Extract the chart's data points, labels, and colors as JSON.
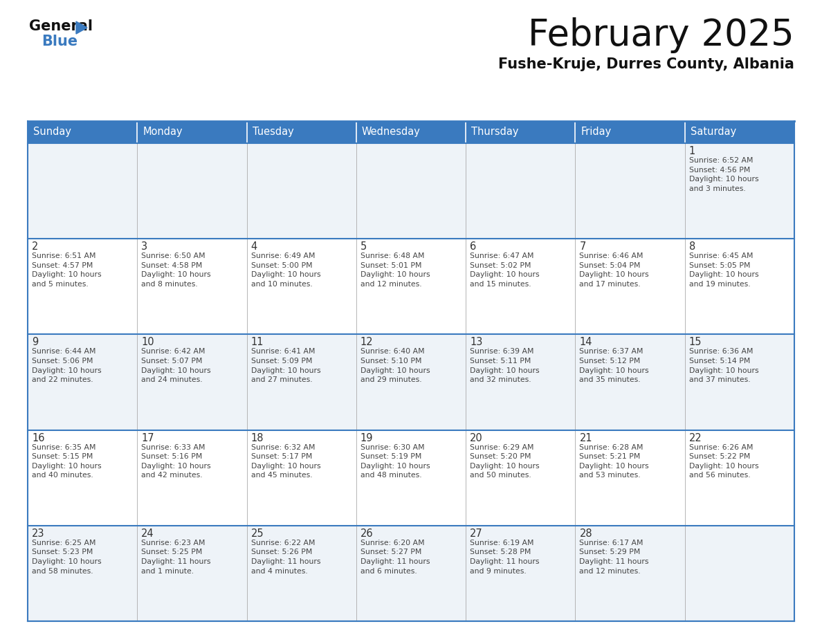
{
  "title": "February 2025",
  "subtitle": "Fushe-Kruje, Durres County, Albania",
  "header_color": "#3a7abf",
  "header_text_color": "#ffffff",
  "border_color": "#3a7abf",
  "cell_line_color": "#aaaaaa",
  "day_number_color": "#333333",
  "cell_text_color": "#444444",
  "row_bg_even": "#eef3f8",
  "row_bg_odd": "#ffffff",
  "days_of_week": [
    "Sunday",
    "Monday",
    "Tuesday",
    "Wednesday",
    "Thursday",
    "Friday",
    "Saturday"
  ],
  "calendar_data": [
    [
      {
        "day": null,
        "text": ""
      },
      {
        "day": null,
        "text": ""
      },
      {
        "day": null,
        "text": ""
      },
      {
        "day": null,
        "text": ""
      },
      {
        "day": null,
        "text": ""
      },
      {
        "day": null,
        "text": ""
      },
      {
        "day": 1,
        "text": "Sunrise: 6:52 AM\nSunset: 4:56 PM\nDaylight: 10 hours\nand 3 minutes."
      }
    ],
    [
      {
        "day": 2,
        "text": "Sunrise: 6:51 AM\nSunset: 4:57 PM\nDaylight: 10 hours\nand 5 minutes."
      },
      {
        "day": 3,
        "text": "Sunrise: 6:50 AM\nSunset: 4:58 PM\nDaylight: 10 hours\nand 8 minutes."
      },
      {
        "day": 4,
        "text": "Sunrise: 6:49 AM\nSunset: 5:00 PM\nDaylight: 10 hours\nand 10 minutes."
      },
      {
        "day": 5,
        "text": "Sunrise: 6:48 AM\nSunset: 5:01 PM\nDaylight: 10 hours\nand 12 minutes."
      },
      {
        "day": 6,
        "text": "Sunrise: 6:47 AM\nSunset: 5:02 PM\nDaylight: 10 hours\nand 15 minutes."
      },
      {
        "day": 7,
        "text": "Sunrise: 6:46 AM\nSunset: 5:04 PM\nDaylight: 10 hours\nand 17 minutes."
      },
      {
        "day": 8,
        "text": "Sunrise: 6:45 AM\nSunset: 5:05 PM\nDaylight: 10 hours\nand 19 minutes."
      }
    ],
    [
      {
        "day": 9,
        "text": "Sunrise: 6:44 AM\nSunset: 5:06 PM\nDaylight: 10 hours\nand 22 minutes."
      },
      {
        "day": 10,
        "text": "Sunrise: 6:42 AM\nSunset: 5:07 PM\nDaylight: 10 hours\nand 24 minutes."
      },
      {
        "day": 11,
        "text": "Sunrise: 6:41 AM\nSunset: 5:09 PM\nDaylight: 10 hours\nand 27 minutes."
      },
      {
        "day": 12,
        "text": "Sunrise: 6:40 AM\nSunset: 5:10 PM\nDaylight: 10 hours\nand 29 minutes."
      },
      {
        "day": 13,
        "text": "Sunrise: 6:39 AM\nSunset: 5:11 PM\nDaylight: 10 hours\nand 32 minutes."
      },
      {
        "day": 14,
        "text": "Sunrise: 6:37 AM\nSunset: 5:12 PM\nDaylight: 10 hours\nand 35 minutes."
      },
      {
        "day": 15,
        "text": "Sunrise: 6:36 AM\nSunset: 5:14 PM\nDaylight: 10 hours\nand 37 minutes."
      }
    ],
    [
      {
        "day": 16,
        "text": "Sunrise: 6:35 AM\nSunset: 5:15 PM\nDaylight: 10 hours\nand 40 minutes."
      },
      {
        "day": 17,
        "text": "Sunrise: 6:33 AM\nSunset: 5:16 PM\nDaylight: 10 hours\nand 42 minutes."
      },
      {
        "day": 18,
        "text": "Sunrise: 6:32 AM\nSunset: 5:17 PM\nDaylight: 10 hours\nand 45 minutes."
      },
      {
        "day": 19,
        "text": "Sunrise: 6:30 AM\nSunset: 5:19 PM\nDaylight: 10 hours\nand 48 minutes."
      },
      {
        "day": 20,
        "text": "Sunrise: 6:29 AM\nSunset: 5:20 PM\nDaylight: 10 hours\nand 50 minutes."
      },
      {
        "day": 21,
        "text": "Sunrise: 6:28 AM\nSunset: 5:21 PM\nDaylight: 10 hours\nand 53 minutes."
      },
      {
        "day": 22,
        "text": "Sunrise: 6:26 AM\nSunset: 5:22 PM\nDaylight: 10 hours\nand 56 minutes."
      }
    ],
    [
      {
        "day": 23,
        "text": "Sunrise: 6:25 AM\nSunset: 5:23 PM\nDaylight: 10 hours\nand 58 minutes."
      },
      {
        "day": 24,
        "text": "Sunrise: 6:23 AM\nSunset: 5:25 PM\nDaylight: 11 hours\nand 1 minute."
      },
      {
        "day": 25,
        "text": "Sunrise: 6:22 AM\nSunset: 5:26 PM\nDaylight: 11 hours\nand 4 minutes."
      },
      {
        "day": 26,
        "text": "Sunrise: 6:20 AM\nSunset: 5:27 PM\nDaylight: 11 hours\nand 6 minutes."
      },
      {
        "day": 27,
        "text": "Sunrise: 6:19 AM\nSunset: 5:28 PM\nDaylight: 11 hours\nand 9 minutes."
      },
      {
        "day": 28,
        "text": "Sunrise: 6:17 AM\nSunset: 5:29 PM\nDaylight: 11 hours\nand 12 minutes."
      },
      {
        "day": null,
        "text": ""
      }
    ]
  ],
  "logo_general_color": "#111111",
  "logo_blue_color": "#3a7abf",
  "fig_width": 11.88,
  "fig_height": 9.18,
  "dpi": 100
}
